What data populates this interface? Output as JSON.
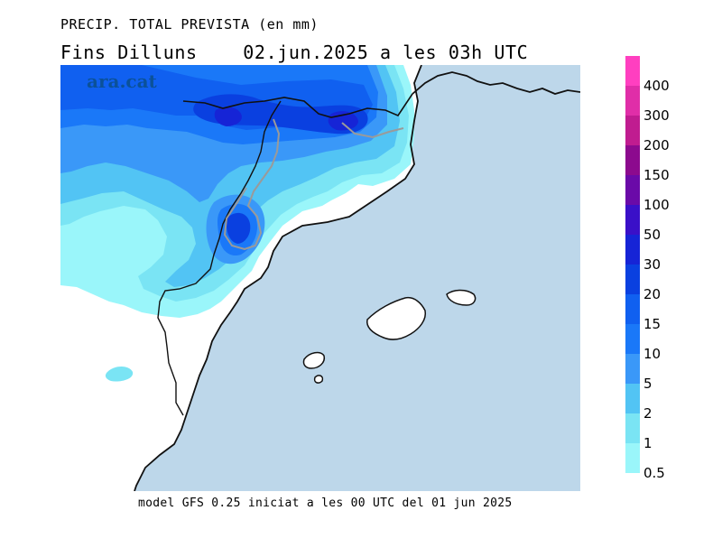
{
  "header": {
    "title": "PRECIP. TOTAL PREVISTA (en mm)",
    "subtitle_day": "Fins Dilluns",
    "subtitle_date": "02.jun.2025 a les 03h UTC"
  },
  "footer": {
    "model_line": "model GFS 0.25 iniciat a les 00 UTC del 01 jun 2025"
  },
  "watermark": {
    "text": "ara.cat"
  },
  "map": {
    "sea_color": "#bdd7ea",
    "land_color": "#ffffff",
    "coast_color": "#111111",
    "border_color": "#9a9a9a"
  },
  "legend": {
    "levels": [
      {
        "label": "400",
        "color": "#ff3fc0"
      },
      {
        "label": "300",
        "color": "#e02ea8"
      },
      {
        "label": "200",
        "color": "#c01c90"
      },
      {
        "label": "150",
        "color": "#8c0a8e"
      },
      {
        "label": "100",
        "color": "#6a0aa8"
      },
      {
        "label": "50",
        "color": "#3a10c8"
      },
      {
        "label": "30",
        "color": "#1624d6"
      },
      {
        "label": "20",
        "color": "#0a40e0"
      },
      {
        "label": "15",
        "color": "#1060f0"
      },
      {
        "label": "10",
        "color": "#1a78f8"
      },
      {
        "label": "5",
        "color": "#3a98f8"
      },
      {
        "label": "2",
        "color": "#52c4f4"
      },
      {
        "label": "1",
        "color": "#7ae4f4"
      },
      {
        "label": "0.5",
        "color": "#9af6fa"
      }
    ]
  }
}
